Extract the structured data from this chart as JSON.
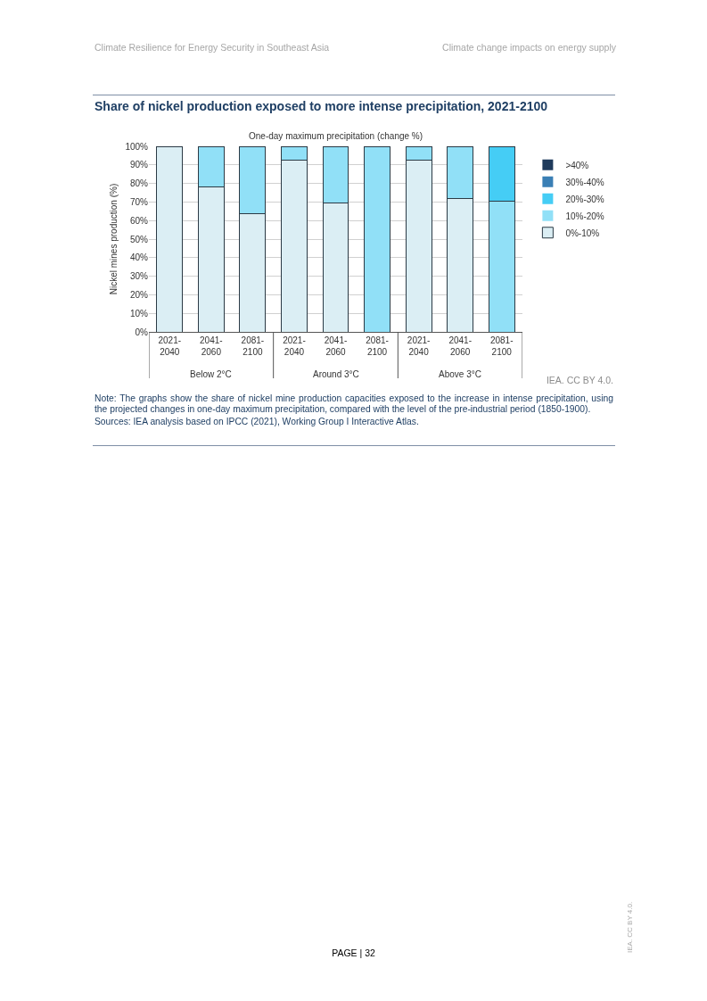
{
  "chart_data": {
    "type": "bar",
    "title": "Share of nickel production exposed to more intense precipitation, 2021-2100",
    "subtitle": "One-day maximum precipitation (change %)",
    "ylabel": "Nickel mines production (%)",
    "categories": [
      "2021-2040",
      "2041-2060",
      "2081-2100",
      "2021-2040",
      "2041-2060",
      "2081-2100",
      "2021-2040",
      "2041-2060",
      "2081-2100"
    ],
    "stacked": true,
    "series": [
      {
        "name": "0%-10%",
        "color": "#dbeef4",
        "values": [
          100,
          78,
          63.5,
          92.5,
          69.5,
          null,
          92.5,
          72,
          0
        ]
      },
      {
        "name": "10%-20%",
        "color": "#91e0f7",
        "values": [
          null,
          22,
          36.5,
          7.5,
          30.5,
          100,
          7.5,
          28,
          70.5
        ]
      },
      {
        "name": "20%-30%",
        "color": "#45cdf5",
        "values": [
          0,
          0,
          0,
          0,
          0,
          0,
          0,
          0,
          29.5
        ]
      },
      {
        "name": "30%-40%",
        "color": "#3a7fb5",
        "values": [
          0,
          0,
          0,
          0,
          0,
          0,
          0,
          0,
          0
        ]
      },
      {
        "name": ">40%",
        "color": "#1f3b5c",
        "values": [
          0,
          0,
          0,
          0,
          0,
          0,
          0,
          0,
          0
        ]
      }
    ],
    "ylim": [
      0,
      100
    ],
    "yticks": [
      {
        "value": 0,
        "label": "0%"
      },
      {
        "value": 10,
        "label": "10%"
      },
      {
        "value": 20,
        "label": "20%"
      },
      {
        "value": 30,
        "label": "30%"
      },
      {
        "value": 40,
        "label": "40%"
      },
      {
        "value": 50,
        "label": "50%"
      },
      {
        "value": 60,
        "label": "60%"
      },
      {
        "value": 70,
        "label": "70%"
      },
      {
        "value": 80,
        "label": "80%"
      },
      {
        "value": 90,
        "label": "90%"
      },
      {
        "value": 100,
        "label": "100%"
      }
    ],
    "grid": "y",
    "legend": "top right",
    "annotations": [
      "Below 2°C",
      "Around 3°C",
      "Above 3°C",
      "IEA. CC BY 4.0.",
      "Note: The graphs show the share of nickel mine production capacities exposed to the increase in intense precipitation, using the projected changes in one-day maximum precipitation, compared with the level of the pre-industrial period (1850-1900).",
      "Sources: IEA analysis based on IPCC (2021), Working Group I Interactive Atlas.",
      "Climate Resilience for Energy Security in Southeast Asia",
      "Climate change impacts on energy supply",
      "PAGE | 32",
      "IEA. CC BY 4.0."
    ]
  }
}
